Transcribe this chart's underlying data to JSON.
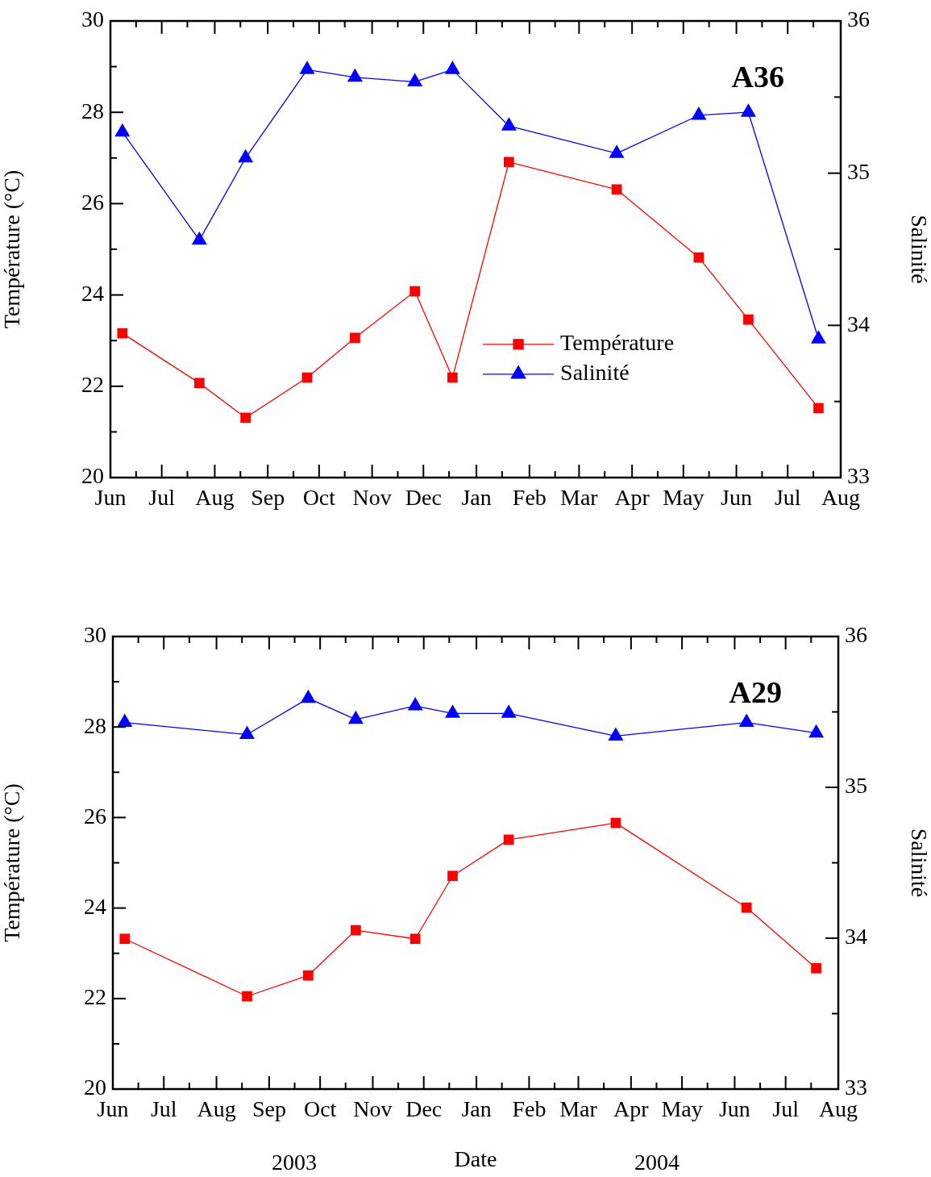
{
  "chart_data": [
    {
      "type": "line",
      "ylabel": "Température (°C)",
      "y2label": "Salinité",
      "annotations": [
        "A36"
      ],
      "legend": "right",
      "x": [
        "2003-06-08",
        "2003-07-23",
        "2003-08-19",
        "2003-09-24",
        "2003-10-22",
        "2003-11-26",
        "2003-12-18",
        "2004-01-20",
        "2004-03-23",
        "2004-05-10",
        "2004-06-08",
        "2004-07-19"
      ],
      "series": [
        {
          "name": "Température",
          "color": "#ff0000",
          "marker": "square",
          "values": [
            23.16,
            22.07,
            21.31,
            22.19,
            23.06,
            24.08,
            22.19,
            26.91,
            26.31,
            24.82,
            23.46,
            21.52
          ]
        },
        {
          "name": "Salinité",
          "color": "#0000ff",
          "marker": "triangle",
          "axis": "y2",
          "values": [
            35.27,
            34.56,
            35.1,
            35.68,
            35.63,
            35.6,
            35.68,
            35.31,
            35.13,
            35.38,
            35.4,
            33.91
          ]
        }
      ],
      "xlim": [
        "2003-06-01",
        "2004-08-01"
      ],
      "xticks": [
        {
          "value": "2003-06-01",
          "label": "Jun"
        },
        {
          "value": "2003-06-16",
          "label": null
        },
        {
          "value": "2003-07-01",
          "label": "Jul"
        },
        {
          "value": "2003-07-16",
          "label": null
        },
        {
          "value": "2003-08-01",
          "label": "Aug"
        },
        {
          "value": "2003-08-16",
          "label": null
        },
        {
          "value": "2003-09-01",
          "label": "Sep"
        },
        {
          "value": "2003-09-16",
          "label": null
        },
        {
          "value": "2003-10-01",
          "label": "Oct"
        },
        {
          "value": "2003-10-16",
          "label": null
        },
        {
          "value": "2003-11-01",
          "label": "Nov"
        },
        {
          "value": "2003-11-16",
          "label": null
        },
        {
          "value": "2003-12-01",
          "label": "Dec"
        },
        {
          "value": "2003-12-16",
          "label": null
        },
        {
          "value": "2004-01-01",
          "label": "Jan"
        },
        {
          "value": "2004-01-16",
          "label": null
        },
        {
          "value": "2004-02-01",
          "label": "Feb"
        },
        {
          "value": "2004-02-16",
          "label": null
        },
        {
          "value": "2004-03-01",
          "label": "Mar"
        },
        {
          "value": "2004-03-16",
          "label": null
        },
        {
          "value": "2004-04-01",
          "label": "Apr"
        },
        {
          "value": "2004-04-16",
          "label": null
        },
        {
          "value": "2004-05-01",
          "label": "May"
        },
        {
          "value": "2004-05-16",
          "label": null
        },
        {
          "value": "2004-06-01",
          "label": "Jun"
        },
        {
          "value": "2004-06-16",
          "label": null
        },
        {
          "value": "2004-07-01",
          "label": "Jul"
        },
        {
          "value": "2004-07-16",
          "label": null
        },
        {
          "value": "2004-08-01",
          "label": "Aug"
        }
      ],
      "ylim": [
        20,
        30
      ],
      "yticks": [
        20,
        {
          "value": 21,
          "label": null
        },
        22,
        {
          "value": 23,
          "label": null
        },
        24,
        {
          "value": 25,
          "label": null
        },
        26,
        {
          "value": 27,
          "label": null
        },
        28,
        {
          "value": 29,
          "label": null
        },
        30
      ],
      "y2lim": [
        33,
        36
      ],
      "y2ticks": [
        33,
        {
          "value": 33.5,
          "label": null
        },
        34,
        {
          "value": 34.5,
          "label": null
        },
        35,
        {
          "value": 35.5,
          "label": null
        },
        36
      ]
    },
    {
      "type": "line",
      "xlabel": "Date",
      "ylabel": "Température (°C)",
      "y2label": "Salinité",
      "annotations": [
        "A29",
        "2003",
        "2004"
      ],
      "x": [
        "2003-06-08",
        "2003-08-19",
        "2003-09-24",
        "2003-10-22",
        "2003-11-26",
        "2003-12-18",
        "2004-01-20",
        "2004-03-23",
        "2004-06-08",
        "2004-07-19"
      ],
      "series": [
        {
          "color": "#ff0000",
          "marker": "square",
          "values": [
            23.32,
            22.05,
            22.51,
            23.51,
            23.32,
            24.71,
            25.51,
            25.88,
            24.01,
            22.67
          ]
        },
        {
          "color": "#0000ff",
          "marker": "triangle",
          "axis": "y2",
          "values": [
            35.43,
            35.35,
            35.59,
            35.45,
            35.54,
            35.49,
            35.49,
            35.34,
            35.43,
            35.36
          ]
        }
      ],
      "xlim": [
        "2003-06-01",
        "2004-08-01"
      ],
      "xticks": [
        {
          "value": "2003-06-01",
          "label": "Jun"
        },
        {
          "value": "2003-06-16",
          "label": null
        },
        {
          "value": "2003-07-01",
          "label": "Jul"
        },
        {
          "value": "2003-07-16",
          "label": null
        },
        {
          "value": "2003-08-01",
          "label": "Aug"
        },
        {
          "value": "2003-08-16",
          "label": null
        },
        {
          "value": "2003-09-01",
          "label": "Sep"
        },
        {
          "value": "2003-09-16",
          "label": null
        },
        {
          "value": "2003-10-01",
          "label": "Oct"
        },
        {
          "value": "2003-10-16",
          "label": null
        },
        {
          "value": "2003-11-01",
          "label": "Nov"
        },
        {
          "value": "2003-11-16",
          "label": null
        },
        {
          "value": "2003-12-01",
          "label": "Dec"
        },
        {
          "value": "2003-12-16",
          "label": null
        },
        {
          "value": "2004-01-01",
          "label": "Jan"
        },
        {
          "value": "2004-01-16",
          "label": null
        },
        {
          "value": "2004-02-01",
          "label": "Feb"
        },
        {
          "value": "2004-02-16",
          "label": null
        },
        {
          "value": "2004-03-01",
          "label": "Mar"
        },
        {
          "value": "2004-03-16",
          "label": null
        },
        {
          "value": "2004-04-01",
          "label": "Apr"
        },
        {
          "value": "2004-04-16",
          "label": null
        },
        {
          "value": "2004-05-01",
          "label": "May"
        },
        {
          "value": "2004-05-16",
          "label": null
        },
        {
          "value": "2004-06-01",
          "label": "Jun"
        },
        {
          "value": "2004-06-16",
          "label": null
        },
        {
          "value": "2004-07-01",
          "label": "Jul"
        },
        {
          "value": "2004-07-16",
          "label": null
        },
        {
          "value": "2004-08-01",
          "label": "Aug"
        }
      ],
      "ylim": [
        20,
        30
      ],
      "yticks": [
        20,
        {
          "value": 21,
          "label": null
        },
        22,
        {
          "value": 23,
          "label": null
        },
        24,
        {
          "value": 25,
          "label": null
        },
        26,
        {
          "value": 27,
          "label": null
        },
        28,
        {
          "value": 29,
          "label": null
        },
        30
      ],
      "y2lim": [
        33,
        36
      ],
      "y2ticks": [
        33,
        {
          "value": 33.5,
          "label": null
        },
        34,
        {
          "value": 34.5,
          "label": null
        },
        35,
        {
          "value": 35.5,
          "label": null
        },
        36
      ]
    }
  ]
}
